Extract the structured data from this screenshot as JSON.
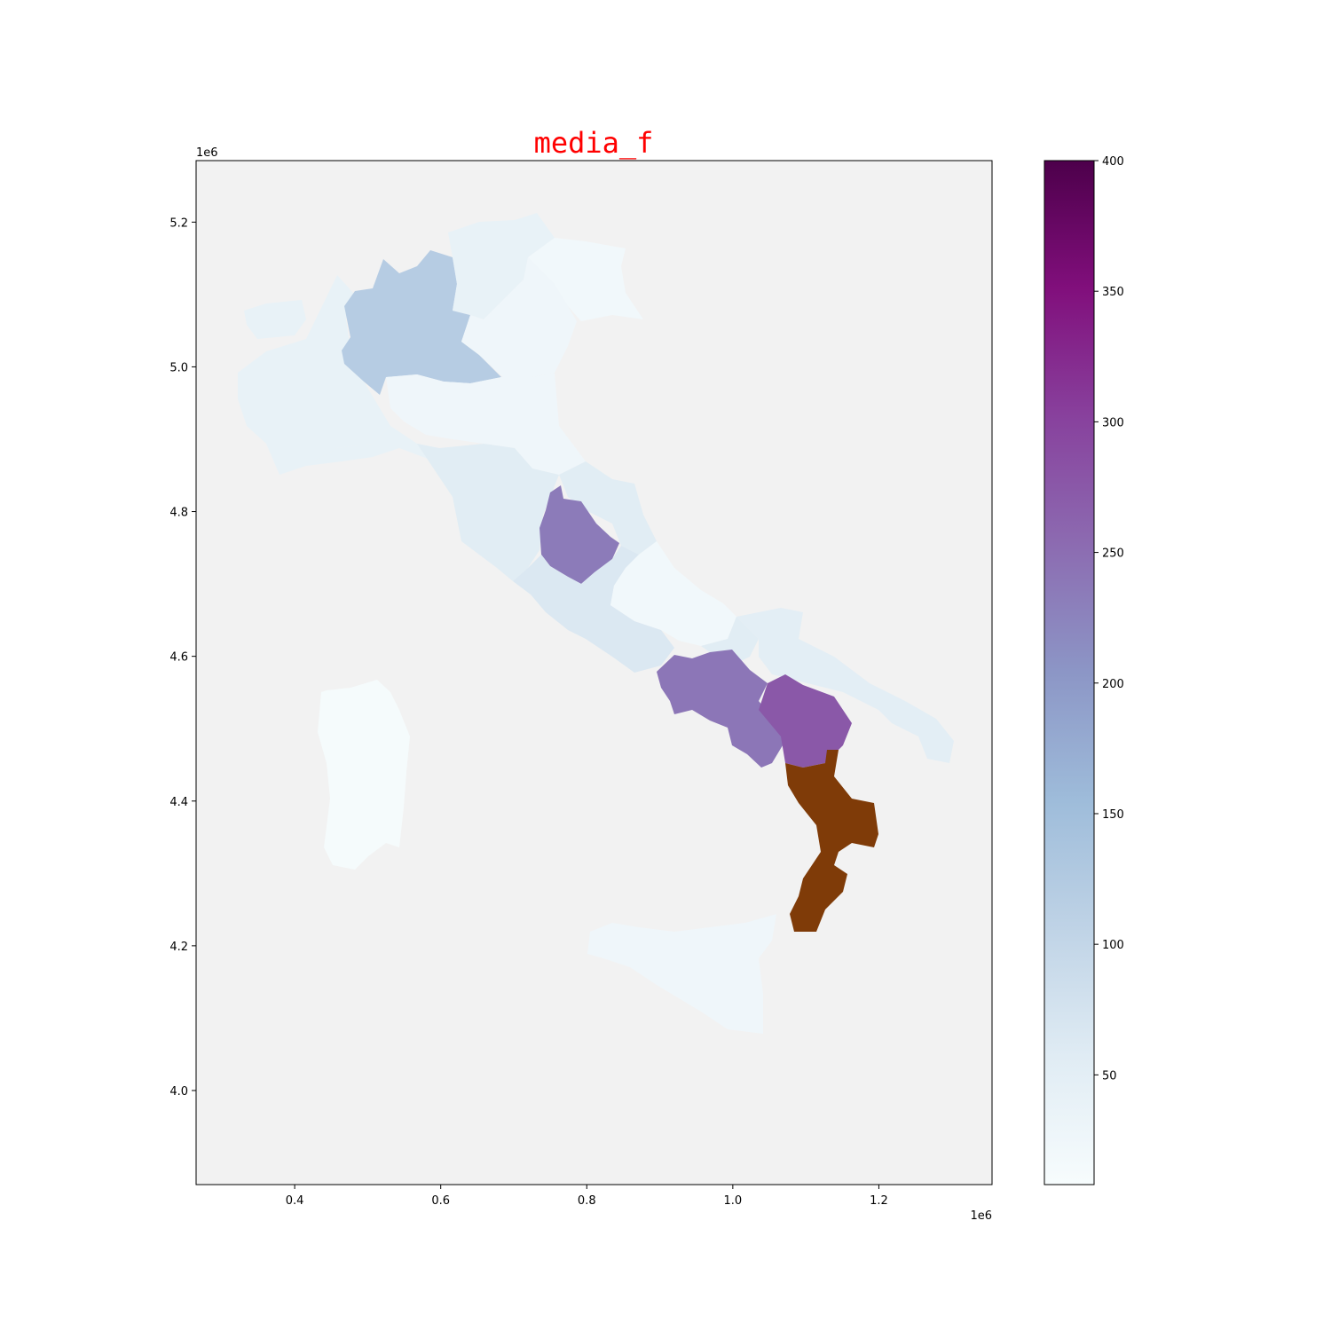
{
  "figure": {
    "title": "media_f",
    "title_color": "#ff0000",
    "background_color": "#f2f2f2",
    "border_color": "#000000"
  },
  "x_axis": {
    "ticks": [
      0.4,
      0.6,
      0.8,
      1.0,
      1.2
    ],
    "tick_labels": [
      "0.4",
      "0.6",
      "0.8",
      "1.0",
      "1.2"
    ],
    "range": [
      0.265,
      1.355
    ],
    "offset_label": "1e6"
  },
  "y_axis": {
    "ticks": [
      4.0,
      4.2,
      4.4,
      4.6,
      4.8,
      5.0,
      5.2
    ],
    "tick_labels": [
      "4.0",
      "4.2",
      "4.4",
      "4.6",
      "4.8",
      "5.0",
      "5.2"
    ],
    "range": [
      3.87,
      5.285
    ],
    "offset_label": "1e6"
  },
  "colorbar": {
    "range": [
      8,
      400
    ],
    "ticks": [
      50,
      100,
      150,
      200,
      250,
      300,
      350,
      400
    ],
    "tick_labels": [
      "50",
      "100",
      "150",
      "200",
      "250",
      "300",
      "350",
      "400"
    ],
    "colormap": "BuPu",
    "stops": [
      "#f7fcfd",
      "#e0ecf4",
      "#bfd3e6",
      "#9ebcda",
      "#8c96c6",
      "#8c6bb1",
      "#88419d",
      "#810f7c",
      "#4d004b"
    ]
  },
  "regions": {
    "valle_daosta": {
      "value": 40
    },
    "piemonte": {
      "value": 40
    },
    "liguria": {
      "value": 40
    },
    "lombardia": {
      "value": 120
    },
    "trentino": {
      "value": 40
    },
    "veneto": {
      "value": 25
    },
    "friuli": {
      "value": 20
    },
    "emilia": {
      "value": 25
    },
    "toscana": {
      "value": 55
    },
    "marche": {
      "value": 55
    },
    "umbria": {
      "value": 235
    },
    "lazio": {
      "value": 65
    },
    "abruzzo": {
      "value": 20
    },
    "molise": {
      "value": 55
    },
    "campania": {
      "value": 240
    },
    "puglia": {
      "value": 50
    },
    "basilicata": {
      "value": 275
    },
    "calabria": {
      "value": null,
      "color": "#7f3b08"
    },
    "sardegna": {
      "value": 12
    },
    "sicilia": {
      "value": 25
    }
  }
}
